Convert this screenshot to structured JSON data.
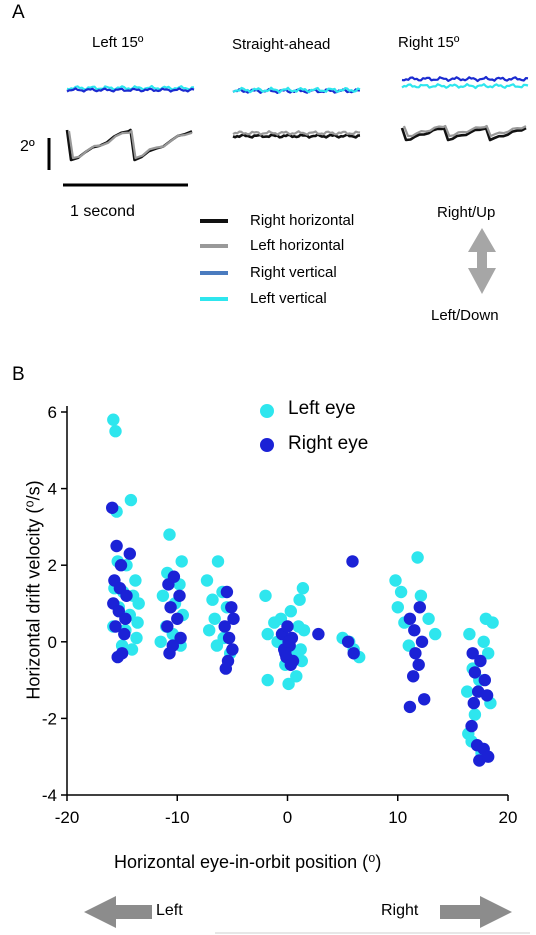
{
  "panel_a": {
    "letter": "A",
    "titles": {
      "left": "Left 15º",
      "center": "Straight-ahead",
      "right": "Right 15º"
    },
    "scale_deg": "2º",
    "scale_time": "1 second",
    "legend": [
      {
        "label": "Right horizontal",
        "color": "#111111"
      },
      {
        "label": "Left horizontal",
        "color": "#999999"
      },
      {
        "label": "Right vertical",
        "color": "#4a7bbf"
      },
      {
        "label": "Left vertical",
        "color": "#2ee6ee"
      }
    ],
    "direction": {
      "up": "Right/Up",
      "down": "Left/Down",
      "arrow_color": "#a6a6a6"
    },
    "trace_colors": {
      "right_horizontal": "#111111",
      "left_horizontal": "#999999",
      "right_vertical": "#1b2bd0",
      "left_vertical": "#2ee6ee"
    }
  },
  "panel_b": {
    "letter": "B",
    "left_arrow_label": "Left",
    "right_arrow_label": "Right",
    "arrow_color": "#8c8c8c"
  },
  "chart_data": {
    "type": "scatter",
    "xlabel": "Horizontal eye-in-orbit position (⁰)",
    "ylabel": "Horizontal drift velocity (⁰/s)",
    "xlim": [
      -20,
      20
    ],
    "ylim": [
      -4,
      6
    ],
    "xticks": [
      -20,
      -10,
      0,
      10,
      20
    ],
    "yticks": [
      -4,
      -2,
      0,
      2,
      4,
      6
    ],
    "legend_placement": "top-center",
    "grid": false,
    "series": [
      {
        "name": "Left eye",
        "color": "#2ee6ee",
        "points": [
          [
            -15.8,
            5.8
          ],
          [
            -15.6,
            5.5
          ],
          [
            -14.2,
            3.7
          ],
          [
            -15.5,
            3.4
          ],
          [
            -15.4,
            2.1
          ],
          [
            -14.6,
            2.0
          ],
          [
            -13.8,
            1.6
          ],
          [
            -15.7,
            1.4
          ],
          [
            -14.9,
            1.3
          ],
          [
            -14.0,
            1.2
          ],
          [
            -13.5,
            1.0
          ],
          [
            -15.3,
            0.9
          ],
          [
            -14.3,
            0.7
          ],
          [
            -13.6,
            0.5
          ],
          [
            -15.8,
            0.4
          ],
          [
            -14.7,
            0.3
          ],
          [
            -13.7,
            0.1
          ],
          [
            -15.0,
            -0.1
          ],
          [
            -14.1,
            -0.2
          ],
          [
            -10.7,
            2.8
          ],
          [
            -9.6,
            2.1
          ],
          [
            -10.9,
            1.8
          ],
          [
            -9.8,
            1.5
          ],
          [
            -11.3,
            1.2
          ],
          [
            -10.2,
            1.0
          ],
          [
            -9.5,
            0.7
          ],
          [
            -11.0,
            0.4
          ],
          [
            -10.4,
            0.2
          ],
          [
            -11.5,
            0.0
          ],
          [
            -9.7,
            -0.1
          ],
          [
            -6.3,
            2.1
          ],
          [
            -7.3,
            1.6
          ],
          [
            -5.9,
            1.3
          ],
          [
            -6.8,
            1.1
          ],
          [
            -5.5,
            0.9
          ],
          [
            -6.6,
            0.6
          ],
          [
            -7.1,
            0.3
          ],
          [
            -5.8,
            0.1
          ],
          [
            -6.4,
            -0.1
          ],
          [
            -5.2,
            -0.3
          ],
          [
            -2.0,
            1.2
          ],
          [
            -1.2,
            0.5
          ],
          [
            -1.8,
            0.2
          ],
          [
            -0.6,
            0.6
          ],
          [
            0.3,
            0.8
          ],
          [
            1.1,
            1.1
          ],
          [
            1.4,
            1.4
          ],
          [
            1.0,
            0.4
          ],
          [
            0.5,
            -0.3
          ],
          [
            -0.2,
            -0.6
          ],
          [
            1.3,
            -0.5
          ],
          [
            0.8,
            -0.9
          ],
          [
            -1.8,
            -1.0
          ],
          [
            0.1,
            -1.1
          ],
          [
            1.2,
            -0.2
          ],
          [
            -0.9,
            0.0
          ],
          [
            1.5,
            0.3
          ],
          [
            5.0,
            0.1
          ],
          [
            6.0,
            -0.2
          ],
          [
            6.5,
            -0.4
          ],
          [
            5.6,
            0.0
          ],
          [
            9.8,
            1.6
          ],
          [
            10.3,
            1.3
          ],
          [
            11.8,
            2.2
          ],
          [
            12.1,
            1.2
          ],
          [
            12.8,
            0.6
          ],
          [
            10.6,
            0.5
          ],
          [
            13.4,
            0.2
          ],
          [
            11.0,
            -0.1
          ],
          [
            10.0,
            0.9
          ],
          [
            18.0,
            0.6
          ],
          [
            18.6,
            0.5
          ],
          [
            16.5,
            0.2
          ],
          [
            17.8,
            0.0
          ],
          [
            18.2,
            -0.3
          ],
          [
            16.8,
            -0.7
          ],
          [
            17.4,
            -1.0
          ],
          [
            16.3,
            -1.3
          ],
          [
            18.4,
            -1.6
          ],
          [
            17.0,
            -1.9
          ],
          [
            16.7,
            -2.6
          ],
          [
            17.6,
            -2.9
          ],
          [
            16.4,
            -2.4
          ]
        ]
      },
      {
        "name": "Right eye",
        "color": "#1b22d6",
        "points": [
          [
            -15.9,
            3.5
          ],
          [
            -15.5,
            2.5
          ],
          [
            -14.3,
            2.3
          ],
          [
            -15.1,
            2.0
          ],
          [
            -15.7,
            1.6
          ],
          [
            -15.2,
            1.4
          ],
          [
            -14.6,
            1.2
          ],
          [
            -15.8,
            1.0
          ],
          [
            -15.3,
            0.8
          ],
          [
            -14.7,
            0.6
          ],
          [
            -15.6,
            0.4
          ],
          [
            -14.8,
            0.2
          ],
          [
            -15.0,
            -0.3
          ],
          [
            -15.4,
            -0.4
          ],
          [
            -10.3,
            1.7
          ],
          [
            -10.8,
            1.5
          ],
          [
            -9.8,
            1.2
          ],
          [
            -10.6,
            0.9
          ],
          [
            -10.0,
            0.6
          ],
          [
            -10.9,
            0.4
          ],
          [
            -9.7,
            0.1
          ],
          [
            -10.4,
            -0.1
          ],
          [
            -10.7,
            -0.3
          ],
          [
            -5.5,
            1.3
          ],
          [
            -5.1,
            0.9
          ],
          [
            -4.9,
            0.6
          ],
          [
            -5.7,
            0.4
          ],
          [
            -5.3,
            0.1
          ],
          [
            -5.0,
            -0.2
          ],
          [
            -5.4,
            -0.5
          ],
          [
            -5.6,
            -0.7
          ],
          [
            -0.5,
            0.2
          ],
          [
            0.0,
            0.4
          ],
          [
            0.4,
            0.1
          ],
          [
            0.2,
            -0.1
          ],
          [
            -0.2,
            -0.3
          ],
          [
            0.5,
            -0.5
          ],
          [
            -0.3,
            -0.2
          ],
          [
            0.1,
            0.0
          ],
          [
            -0.1,
            -0.4
          ],
          [
            0.3,
            -0.6
          ],
          [
            2.8,
            0.2
          ],
          [
            5.9,
            2.1
          ],
          [
            5.5,
            0.0
          ],
          [
            6.0,
            -0.3
          ],
          [
            11.1,
            0.6
          ],
          [
            11.5,
            0.3
          ],
          [
            12.2,
            0.0
          ],
          [
            11.6,
            -0.3
          ],
          [
            11.9,
            -0.6
          ],
          [
            11.4,
            -0.9
          ],
          [
            12.4,
            -1.5
          ],
          [
            11.1,
            -1.7
          ],
          [
            12.0,
            0.9
          ],
          [
            16.8,
            -0.3
          ],
          [
            17.5,
            -0.5
          ],
          [
            17.0,
            -0.8
          ],
          [
            17.9,
            -1.0
          ],
          [
            17.3,
            -1.3
          ],
          [
            16.9,
            -1.6
          ],
          [
            18.1,
            -1.4
          ],
          [
            16.7,
            -2.2
          ],
          [
            17.2,
            -2.7
          ],
          [
            17.8,
            -2.8
          ],
          [
            17.4,
            -3.1
          ],
          [
            18.2,
            -3.0
          ]
        ]
      }
    ]
  }
}
